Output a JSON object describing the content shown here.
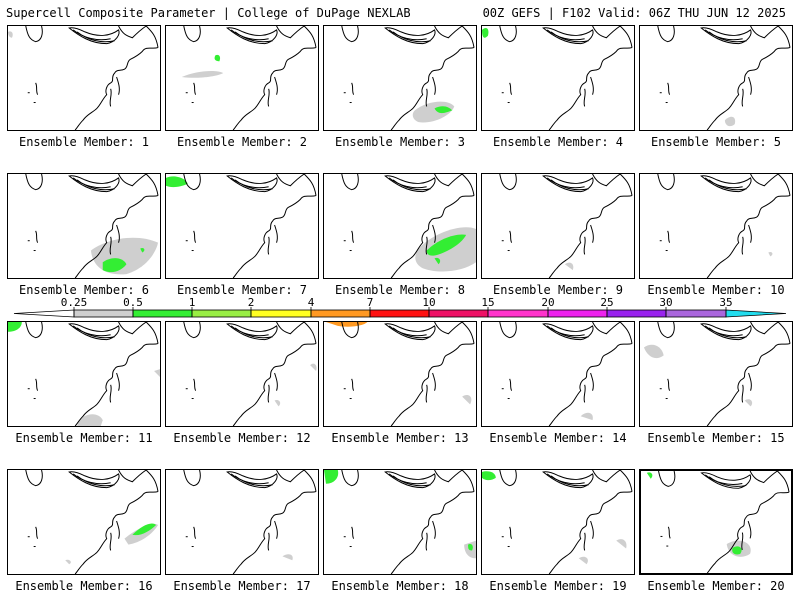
{
  "header": {
    "left": "Supercell Composite Parameter | College of DuPage NEXLAB",
    "right": "00Z GEFS | F102 Valid: 06Z THU JUN 12 2025"
  },
  "colorbar": {
    "labels": [
      "0.25",
      "0.5",
      "1",
      "2",
      "4",
      "7",
      "10",
      "15",
      "20",
      "25",
      "30",
      "35"
    ],
    "colors": [
      "#ffffff",
      "#cfcfcf",
      "#33ee33",
      "#99ee44",
      "#ffff22",
      "#ff9922",
      "#ff1111",
      "#ee1166",
      "#ff33cc",
      "#ee22ee",
      "#9922ee",
      "#aa66dd",
      "#22ddee"
    ]
  },
  "panels": [
    {
      "label": "Ensemble Member: 1"
    },
    {
      "label": "Ensemble Member: 2"
    },
    {
      "label": "Ensemble Member: 3"
    },
    {
      "label": "Ensemble Member: 4"
    },
    {
      "label": "Ensemble Member: 5"
    },
    {
      "label": "Ensemble Member: 6"
    },
    {
      "label": "Ensemble Member: 7"
    },
    {
      "label": "Ensemble Member: 8"
    },
    {
      "label": "Ensemble Member: 9"
    },
    {
      "label": "Ensemble Member: 10"
    },
    {
      "label": "Ensemble Member: 11"
    },
    {
      "label": "Ensemble Member: 12"
    },
    {
      "label": "Ensemble Member: 13"
    },
    {
      "label": "Ensemble Member: 14"
    },
    {
      "label": "Ensemble Member: 15"
    },
    {
      "label": "Ensemble Member: 16"
    },
    {
      "label": "Ensemble Member: 17"
    },
    {
      "label": "Ensemble Member: 18"
    },
    {
      "label": "Ensemble Member: 19"
    },
    {
      "label": "Ensemble Member: 20"
    }
  ],
  "selected_panel": 20
}
